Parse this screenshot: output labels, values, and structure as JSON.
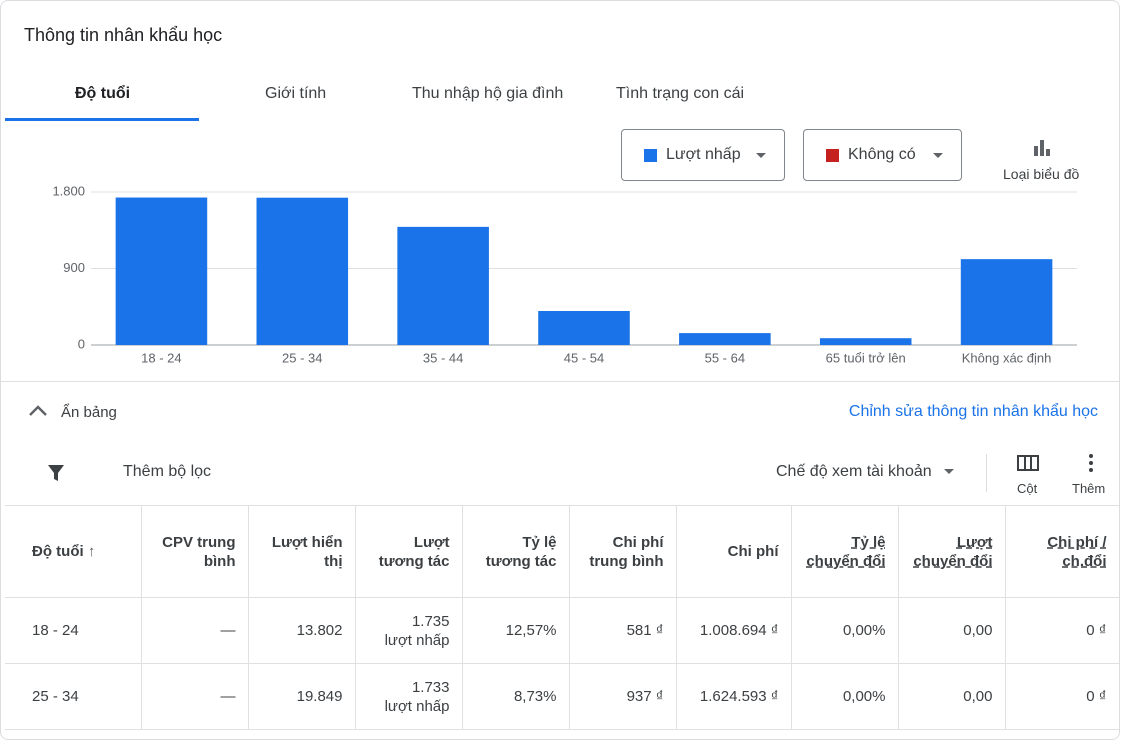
{
  "header": {
    "title": "Thông tin nhân khẩu học"
  },
  "tabs": [
    "Độ tuổi",
    "Giới tính",
    "Thu nhập hộ gia đình",
    "Tình trạng con cái"
  ],
  "controls": {
    "metric_1": "Lượt nhấp",
    "metric_2": "Không có",
    "chart_type": "Loại biểu đồ",
    "hide_table": "Ẩn bảng",
    "edit": "Chỉnh sửa thông tin nhân khẩu học",
    "add_filter": "Thêm bộ lọc",
    "view": "Chế độ xem tài khoản",
    "columns": "Cột",
    "more": "Thêm"
  },
  "chart_data": {
    "type": "bar",
    "categories": [
      "18 - 24",
      "25 - 34",
      "35 - 44",
      "45 - 54",
      "55 - 64",
      "65 tuổi trở lên",
      "Không xác định"
    ],
    "series": [
      {
        "name": "Lượt nhấp",
        "color": "#1a73e8",
        "values": [
          1735,
          1733,
          1390,
          400,
          140,
          80,
          1010
        ]
      }
    ],
    "ylim": [
      0,
      1800
    ],
    "yticks": [
      0,
      900,
      {
        "value": 1800,
        "label": "1.800"
      }
    ],
    "grid": true
  },
  "table": {
    "headers": [
      "Độ tuổi",
      "CPV trung bình",
      "Lượt hiển thị",
      "Lượt tương tác",
      "Tỷ lệ tương tác",
      "Chi phí trung bình",
      "Chi phí",
      "Tỷ lệ chuyển đổi",
      "Lượt chuyển đổi",
      "Chi phí / ch.đổi"
    ],
    "rows": [
      [
        "18 - 24",
        "—",
        "13.802",
        [
          "1.735",
          "lượt nhấp"
        ],
        "12,57%",
        "581 ₫",
        "1.008.694 ₫",
        "0,00%",
        "0,00",
        "0 ₫"
      ],
      [
        "25 - 34",
        "—",
        "19.849",
        [
          "1.733",
          "lượt nhấp"
        ],
        "8,73%",
        "937 ₫",
        "1.624.593 ₫",
        "0,00%",
        "0,00",
        "0 ₫"
      ]
    ]
  }
}
